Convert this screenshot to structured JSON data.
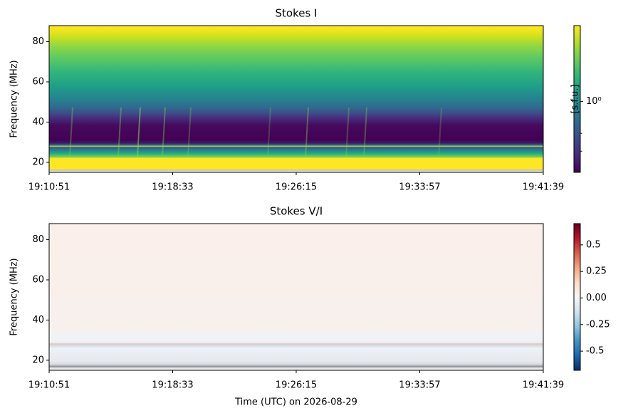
{
  "chart_data": [
    {
      "type": "spectrogram",
      "title": "Stokes I",
      "ylabel": "Frequency (MHz)",
      "xlim": [
        0,
        1848
      ],
      "xticks": [
        {
          "value": 0,
          "label": "19:10:51"
        },
        {
          "value": 462,
          "label": "19:18:33"
        },
        {
          "value": 924,
          "label": "19:26:15"
        },
        {
          "value": 1386,
          "label": "19:33:57"
        },
        {
          "value": 1848,
          "label": "19:41:39"
        }
      ],
      "ylim": [
        15,
        88
      ],
      "yticks": [
        20,
        40,
        60,
        80
      ],
      "colormap": "viridis",
      "colorbar_scale": "log",
      "colorbar_label": "[s.f.u.]",
      "clim": [
        0.32,
        3.4
      ],
      "colorbar_ticks": [
        {
          "value": 1,
          "label": "10⁰"
        }
      ],
      "colorbar_minor_ticks": [
        0.6,
        0.45
      ]
    },
    {
      "type": "spectrogram",
      "title": "Stokes V/I",
      "ylabel": "Frequency (MHz)",
      "xlabel": "Time (UTC) on 2026-08-29",
      "xlim": [
        0,
        1848
      ],
      "xticks": [
        {
          "value": 0,
          "label": "19:10:51"
        },
        {
          "value": 462,
          "label": "19:18:33"
        },
        {
          "value": 924,
          "label": "19:26:15"
        },
        {
          "value": 1386,
          "label": "19:33:57"
        },
        {
          "value": 1848,
          "label": "19:41:39"
        }
      ],
      "ylim": [
        15,
        88
      ],
      "yticks": [
        20,
        40,
        60,
        80
      ],
      "colormap": "RdBu_r",
      "colorbar_scale": "linear",
      "clim": [
        -0.68,
        0.7
      ],
      "colorbar_ticks": [
        0.5,
        0.25,
        {
          "value": 0,
          "label": "0.00"
        },
        -0.25,
        -0.5
      ]
    }
  ]
}
